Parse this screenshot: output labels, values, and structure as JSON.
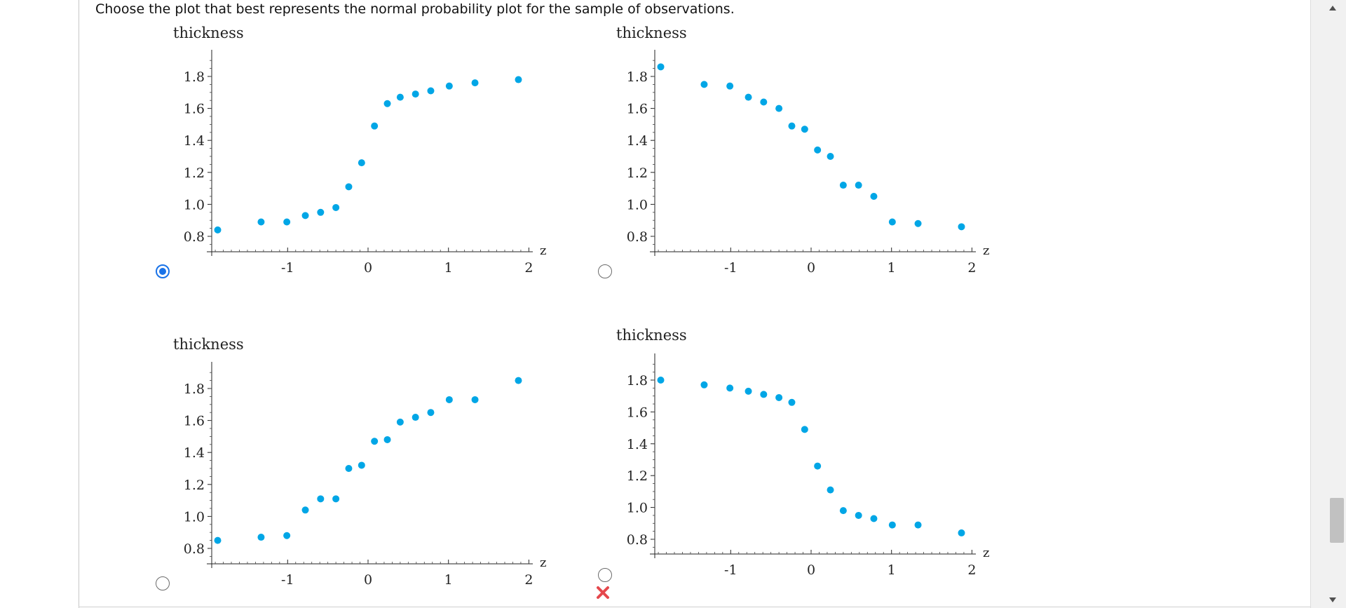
{
  "question": "Choose the plot that best represents the normal probability plot for the sample of observations.",
  "options": [
    {
      "ylabel": "thickness",
      "xlabel": "z",
      "selected": true,
      "marked_wrong": false,
      "points": [
        [
          -1.87,
          0.84
        ],
        [
          -1.33,
          0.89
        ],
        [
          -1.01,
          0.89
        ],
        [
          -0.78,
          0.93
        ],
        [
          -0.59,
          0.95
        ],
        [
          -0.4,
          0.98
        ],
        [
          -0.24,
          1.11
        ],
        [
          -0.08,
          1.26
        ],
        [
          0.08,
          1.49
        ],
        [
          0.24,
          1.63
        ],
        [
          0.4,
          1.67
        ],
        [
          0.59,
          1.69
        ],
        [
          0.78,
          1.71
        ],
        [
          1.01,
          1.74
        ],
        [
          1.33,
          1.76
        ],
        [
          1.87,
          1.78
        ]
      ]
    },
    {
      "ylabel": "thickness",
      "xlabel": "z",
      "selected": false,
      "marked_wrong": false,
      "points": [
        [
          -1.87,
          1.86
        ],
        [
          -1.33,
          1.75
        ],
        [
          -1.01,
          1.74
        ],
        [
          -0.78,
          1.67
        ],
        [
          -0.59,
          1.64
        ],
        [
          -0.4,
          1.6
        ],
        [
          -0.24,
          1.49
        ],
        [
          -0.08,
          1.47
        ],
        [
          0.08,
          1.34
        ],
        [
          0.24,
          1.3
        ],
        [
          0.4,
          1.12
        ],
        [
          0.59,
          1.12
        ],
        [
          0.78,
          1.05
        ],
        [
          1.01,
          0.89
        ],
        [
          1.33,
          0.88
        ],
        [
          1.87,
          0.86
        ]
      ]
    },
    {
      "ylabel": "thickness",
      "xlabel": "z",
      "selected": false,
      "marked_wrong": false,
      "points": [
        [
          -1.87,
          0.85
        ],
        [
          -1.33,
          0.87
        ],
        [
          -1.01,
          0.88
        ],
        [
          -0.78,
          1.04
        ],
        [
          -0.59,
          1.11
        ],
        [
          -0.4,
          1.11
        ],
        [
          -0.24,
          1.3
        ],
        [
          -0.08,
          1.32
        ],
        [
          0.08,
          1.47
        ],
        [
          0.24,
          1.48
        ],
        [
          0.4,
          1.59
        ],
        [
          0.59,
          1.62
        ],
        [
          0.78,
          1.65
        ],
        [
          1.01,
          1.73
        ],
        [
          1.33,
          1.73
        ],
        [
          1.87,
          1.85
        ]
      ]
    },
    {
      "ylabel": "thickness",
      "xlabel": "z",
      "selected": false,
      "marked_wrong": true,
      "points": [
        [
          -1.87,
          1.8
        ],
        [
          -1.33,
          1.77
        ],
        [
          -1.01,
          1.75
        ],
        [
          -0.78,
          1.73
        ],
        [
          -0.59,
          1.71
        ],
        [
          -0.4,
          1.69
        ],
        [
          -0.24,
          1.66
        ],
        [
          -0.08,
          1.49
        ],
        [
          0.08,
          1.26
        ],
        [
          0.24,
          1.11
        ],
        [
          0.4,
          0.98
        ],
        [
          0.59,
          0.95
        ],
        [
          0.78,
          0.93
        ],
        [
          1.01,
          0.89
        ],
        [
          1.33,
          0.89
        ],
        [
          1.87,
          0.84
        ]
      ]
    }
  ],
  "y_ticks": [
    "0.8",
    "1.0",
    "1.2",
    "1.4",
    "1.6",
    "1.8"
  ],
  "y_tick_values": [
    0.8,
    1.0,
    1.2,
    1.4,
    1.6,
    1.8
  ],
  "x_ticks": [
    "-1",
    "0",
    "1",
    "2"
  ],
  "x_tick_values": [
    -1,
    0,
    1,
    2
  ],
  "colors": {
    "point": "#00a6e6",
    "radio_selected": "#1a73e8",
    "wrong_mark": "#e5484d"
  },
  "icons": {
    "wrong": "x-icon",
    "scroll_up": "arrow-up-icon",
    "scroll_down": "arrow-down-icon"
  }
}
